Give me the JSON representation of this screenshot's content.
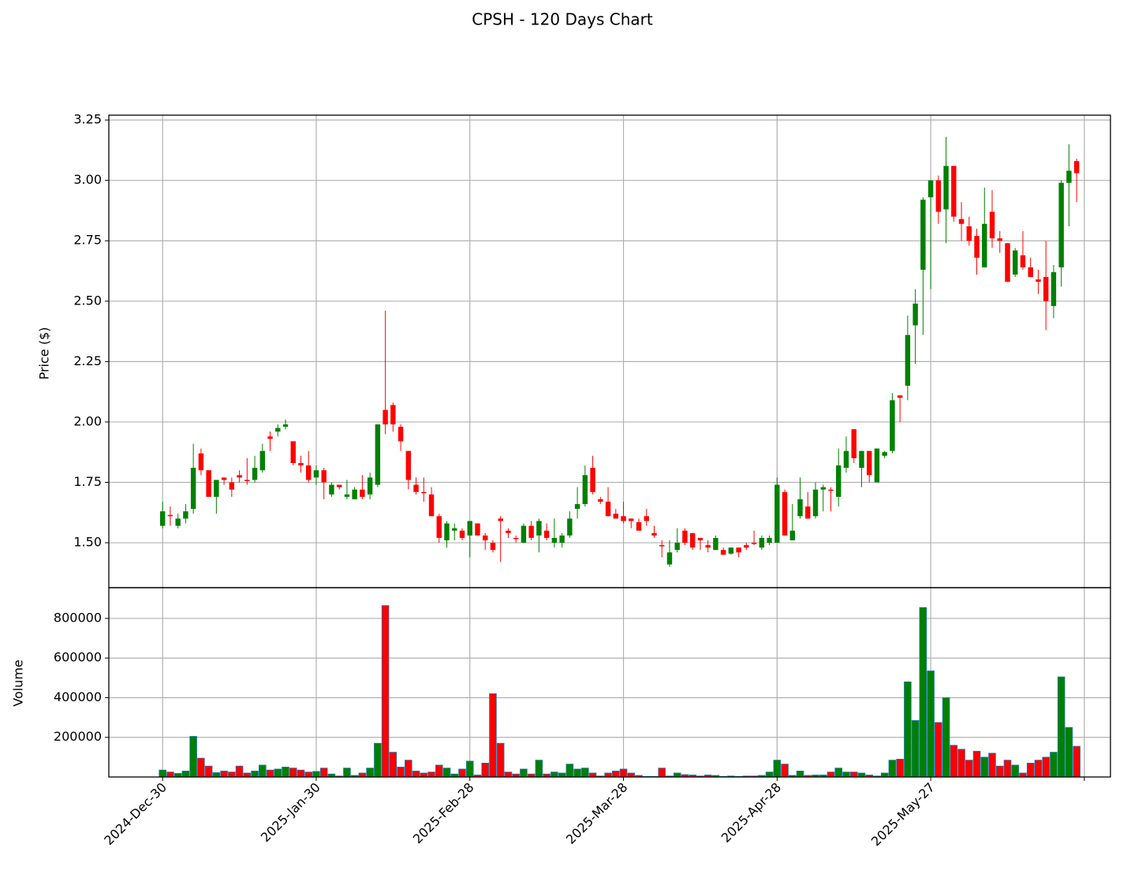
{
  "chart_data": {
    "type": "candlestick",
    "title": "CPSH - 120 Days Chart",
    "ylabel": "Price ($)",
    "volume_label": "Volume",
    "up_color": "green",
    "down_color": "red",
    "volume_edge_color": "#1f77b4",
    "grid": true,
    "xlim": [
      -7,
      123.4
    ],
    "xticks": [
      {
        "value": 0,
        "label": "2024-Dec-30"
      },
      {
        "value": 20,
        "label": "2025-Jan-30"
      },
      {
        "value": 40,
        "label": "2025-Feb-28"
      },
      {
        "value": 60,
        "label": "2025-Mar-28"
      },
      {
        "value": 80,
        "label": "2025-Apr-28"
      },
      {
        "value": 100,
        "label": "2025-May-27"
      },
      {
        "value": 120,
        "label": null
      }
    ],
    "ylim": [
      1.314,
      3.27
    ],
    "yticks": [
      {
        "value": 1.5,
        "label": "1.50"
      },
      {
        "value": 1.75,
        "label": "1.75"
      },
      {
        "value": 2.0,
        "label": "2.00"
      },
      {
        "value": 2.25,
        "label": "2.25"
      },
      {
        "value": 2.5,
        "label": "2.50"
      },
      {
        "value": 2.75,
        "label": "2.75"
      },
      {
        "value": 3.0,
        "label": "3.00"
      },
      {
        "value": 3.25,
        "label": "3.25"
      }
    ],
    "volume_ylim": [
      0,
      955000
    ],
    "volume_yticks": [
      200000,
      400000,
      600000,
      800000
    ],
    "open": [
      1.57,
      1.615,
      1.57,
      1.6,
      1.64,
      1.87,
      1.8,
      1.69,
      1.77,
      1.75,
      1.78,
      1.76,
      1.76,
      1.8,
      1.94,
      1.96,
      1.98,
      1.92,
      1.83,
      1.82,
      1.77,
      1.8,
      1.7,
      1.74,
      1.69,
      1.68,
      1.72,
      1.7,
      1.74,
      2.05,
      2.07,
      1.98,
      1.88,
      1.74,
      1.71,
      1.7,
      1.61,
      1.51,
      1.55,
      1.55,
      1.53,
      1.58,
      1.53,
      1.5,
      1.6,
      1.55,
      1.52,
      1.5,
      1.57,
      1.53,
      1.55,
      1.5,
      1.5,
      1.53,
      1.64,
      1.66,
      1.81,
      1.68,
      1.67,
      1.62,
      1.61,
      1.6,
      1.585,
      1.61,
      1.54,
      1.49,
      1.41,
      1.47,
      1.55,
      1.54,
      1.52,
      1.49,
      1.47,
      1.47,
      1.455,
      1.48,
      1.49,
      1.5,
      1.48,
      1.5,
      1.5,
      1.71,
      1.51,
      1.61,
      1.65,
      1.61,
      1.72,
      1.72,
      1.69,
      1.81,
      1.97,
      1.81,
      1.88,
      1.75,
      1.86,
      1.88,
      2.11,
      2.15,
      2.4,
      2.63,
      2.93,
      3.0,
      2.88,
      3.06,
      2.84,
      2.81,
      2.77,
      2.64,
      2.87,
      2.76,
      2.74,
      2.61,
      2.69,
      2.64,
      2.59,
      2.6,
      2.48,
      2.64,
      2.99,
      3.08
    ],
    "high": [
      1.67,
      1.65,
      1.62,
      1.66,
      1.91,
      1.89,
      1.8,
      1.76,
      1.77,
      1.77,
      1.8,
      1.85,
      1.86,
      1.91,
      1.96,
      1.99,
      2.01,
      1.92,
      1.86,
      1.88,
      1.82,
      1.81,
      1.75,
      1.74,
      1.76,
      1.73,
      1.78,
      1.79,
      1.99,
      2.46,
      2.08,
      1.99,
      1.88,
      1.77,
      1.77,
      1.73,
      1.62,
      1.59,
      1.58,
      1.56,
      1.59,
      1.58,
      1.54,
      1.51,
      1.61,
      1.56,
      1.53,
      1.58,
      1.59,
      1.6,
      1.58,
      1.6,
      1.54,
      1.63,
      1.73,
      1.82,
      1.86,
      1.69,
      1.73,
      1.64,
      1.67,
      1.6,
      1.6,
      1.64,
      1.57,
      1.51,
      1.51,
      1.56,
      1.56,
      1.54,
      1.52,
      1.51,
      1.53,
      1.48,
      1.48,
      1.48,
      1.5,
      1.55,
      1.53,
      1.53,
      1.77,
      1.72,
      1.66,
      1.77,
      1.71,
      1.75,
      1.74,
      1.73,
      1.89,
      1.94,
      1.97,
      1.88,
      1.88,
      1.89,
      1.88,
      2.12,
      2.11,
      2.44,
      2.55,
      2.93,
      3.0,
      3.02,
      3.18,
      3.06,
      2.91,
      2.85,
      2.8,
      2.97,
      2.96,
      2.79,
      2.74,
      2.72,
      2.79,
      2.68,
      2.63,
      2.75,
      2.65,
      3.0,
      3.15,
      3.09
    ],
    "low": [
      1.56,
      1.57,
      1.56,
      1.58,
      1.62,
      1.78,
      1.69,
      1.62,
      1.74,
      1.69,
      1.75,
      1.74,
      1.75,
      1.79,
      1.88,
      1.94,
      1.97,
      1.82,
      1.79,
      1.75,
      1.74,
      1.68,
      1.69,
      1.72,
      1.68,
      1.68,
      1.68,
      1.68,
      1.73,
      1.95,
      1.96,
      1.88,
      1.72,
      1.7,
      1.67,
      1.61,
      1.5,
      1.48,
      1.51,
      1.51,
      1.44,
      1.53,
      1.47,
      1.46,
      1.42,
      1.52,
      1.5,
      1.5,
      1.51,
      1.46,
      1.51,
      1.48,
      1.48,
      1.52,
      1.6,
      1.65,
      1.7,
      1.66,
      1.61,
      1.6,
      1.58,
      1.56,
      1.55,
      1.57,
      1.52,
      1.44,
      1.4,
      1.46,
      1.49,
      1.47,
      1.47,
      1.46,
      1.47,
      1.45,
      1.45,
      1.44,
      1.47,
      1.49,
      1.47,
      1.49,
      1.5,
      1.53,
      1.51,
      1.6,
      1.6,
      1.6,
      1.63,
      1.63,
      1.65,
      1.79,
      1.83,
      1.73,
      1.75,
      1.75,
      1.85,
      1.87,
      2.0,
      2.09,
      2.24,
      2.36,
      2.55,
      2.82,
      2.74,
      2.83,
      2.75,
      2.73,
      2.61,
      2.64,
      2.72,
      2.7,
      2.58,
      2.6,
      2.63,
      2.6,
      2.53,
      2.38,
      2.43,
      2.56,
      2.81,
      2.91
    ],
    "close": [
      1.63,
      1.61,
      1.6,
      1.63,
      1.81,
      1.8,
      1.69,
      1.76,
      1.76,
      1.72,
      1.77,
      1.755,
      1.81,
      1.88,
      1.93,
      1.975,
      1.99,
      1.83,
      1.82,
      1.76,
      1.8,
      1.75,
      1.74,
      1.73,
      1.7,
      1.72,
      1.69,
      1.77,
      1.99,
      1.99,
      1.99,
      1.92,
      1.76,
      1.71,
      1.705,
      1.61,
      1.52,
      1.58,
      1.56,
      1.52,
      1.59,
      1.53,
      1.51,
      1.47,
      1.59,
      1.54,
      1.515,
      1.57,
      1.52,
      1.59,
      1.52,
      1.52,
      1.53,
      1.6,
      1.66,
      1.78,
      1.71,
      1.67,
      1.61,
      1.6,
      1.59,
      1.59,
      1.55,
      1.59,
      1.53,
      1.485,
      1.46,
      1.5,
      1.5,
      1.48,
      1.51,
      1.48,
      1.52,
      1.45,
      1.48,
      1.46,
      1.48,
      1.495,
      1.52,
      1.52,
      1.74,
      1.53,
      1.55,
      1.68,
      1.6,
      1.72,
      1.73,
      1.715,
      1.82,
      1.88,
      1.85,
      1.88,
      1.78,
      1.89,
      1.875,
      2.09,
      2.1,
      2.36,
      2.49,
      2.92,
      3.0,
      2.87,
      3.06,
      2.85,
      2.82,
      2.75,
      2.68,
      2.82,
      2.76,
      2.75,
      2.58,
      2.71,
      2.64,
      2.6,
      2.58,
      2.5,
      2.62,
      2.99,
      3.04,
      3.03
    ],
    "volume": [
      35000,
      25000,
      18000,
      30000,
      205000,
      95000,
      55000,
      22000,
      30000,
      25000,
      55000,
      20000,
      30000,
      60000,
      35000,
      40000,
      50000,
      45000,
      35000,
      25000,
      28000,
      45000,
      15000,
      5000,
      45000,
      8000,
      20000,
      45000,
      170000,
      865000,
      125000,
      50000,
      85000,
      30000,
      20000,
      25000,
      60000,
      45000,
      15000,
      40000,
      80000,
      10000,
      70000,
      420000,
      170000,
      25000,
      15000,
      40000,
      15000,
      85000,
      15000,
      25000,
      20000,
      65000,
      40000,
      45000,
      20000,
      5000,
      20000,
      30000,
      40000,
      20000,
      8000,
      3000,
      3000,
      45000,
      5000,
      20000,
      12000,
      10000,
      5000,
      10000,
      8000,
      3000,
      5000,
      3000,
      5000,
      5000,
      8000,
      25000,
      85000,
      65000,
      8000,
      30000,
      8000,
      10000,
      10000,
      25000,
      45000,
      25000,
      25000,
      20000,
      10000,
      5000,
      20000,
      85000,
      90000,
      480000,
      285000,
      855000,
      535000,
      275000,
      400000,
      160000,
      140000,
      85000,
      130000,
      100000,
      120000,
      55000,
      85000,
      60000,
      20000,
      70000,
      85000,
      100000,
      125000,
      505000,
      250000,
      155000
    ]
  }
}
